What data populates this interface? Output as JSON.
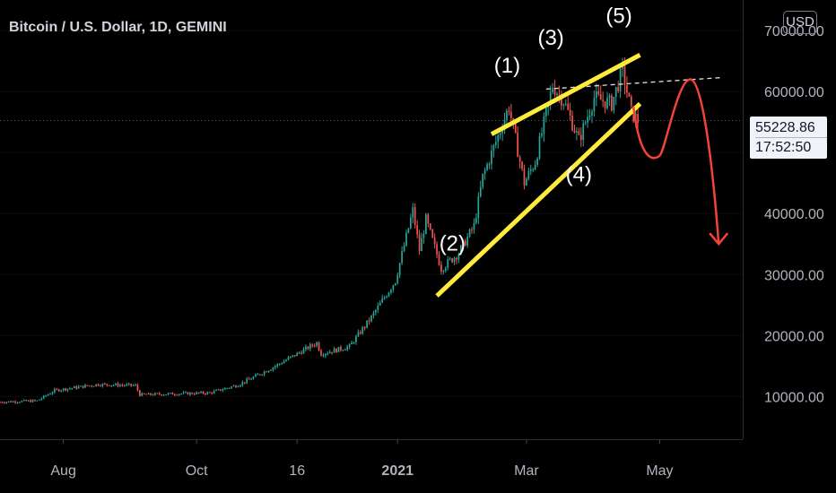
{
  "header": {
    "symbol": "Bitcoin / U.S. Dollar, 1D, GEMINI",
    "currency_button": "USD"
  },
  "price_tag": {
    "price": "55228.86",
    "timer": "17:52:50"
  },
  "colors": {
    "background": "#000000",
    "up_candle": "#26a69a",
    "down_candle": "#ef5350",
    "trendline": "#ffeb3b",
    "projection": "#f44336",
    "axis_text": "#b2b5be"
  },
  "wave_labels": [
    "(1)",
    "(2)",
    "(3)",
    "(4)",
    "(5)"
  ],
  "chart_data": {
    "type": "candlestick",
    "title": "Bitcoin / U.S. Dollar, 1D, GEMINI",
    "y_axis": {
      "ticks": [
        10000,
        20000,
        30000,
        40000,
        50000,
        60000,
        70000
      ],
      "tick_labels": [
        "10000.00",
        "20000.00",
        "30000.00",
        "40000.00",
        "50000.00",
        "60000.00",
        "70000.00"
      ],
      "ylim": [
        3000,
        75000
      ],
      "side": "right"
    },
    "x_axis": {
      "ticks": [
        "Aug",
        "Oct",
        "16",
        "2021",
        "Mar",
        "May"
      ],
      "range": [
        "2020-07-03",
        "2021-06-08"
      ]
    },
    "last_price": 55228.86,
    "price_path": [
      [
        "2020-07-03",
        9100
      ],
      [
        "2020-07-20",
        9300
      ],
      [
        "2020-07-28",
        11000
      ],
      [
        "2020-08-17",
        12000
      ],
      [
        "2020-09-03",
        11800
      ],
      [
        "2020-09-05",
        10300
      ],
      [
        "2020-10-07",
        10600
      ],
      [
        "2020-10-20",
        11900
      ],
      [
        "2020-11-05",
        14800
      ],
      [
        "2020-11-25",
        18800
      ],
      [
        "2020-11-27",
        17000
      ],
      [
        "2020-12-10",
        18200
      ],
      [
        "2020-12-20",
        23000
      ],
      [
        "2020-12-31",
        29000
      ],
      [
        "2021-01-08",
        40500
      ],
      [
        "2021-01-11",
        34000
      ],
      [
        "2021-01-14",
        39000
      ],
      [
        "2021-01-21",
        31000
      ],
      [
        "2021-01-29",
        33500
      ],
      [
        "2021-02-05",
        38000
      ],
      [
        "2021-02-09",
        46000
      ],
      [
        "2021-02-21",
        57500
      ],
      [
        "2021-02-28",
        45000
      ],
      [
        "2021-03-05",
        48500
      ],
      [
        "2021-03-13",
        61000
      ],
      [
        "2021-03-18",
        58500
      ],
      [
        "2021-03-25",
        52000
      ],
      [
        "2021-04-01",
        59000
      ],
      [
        "2021-04-09",
        58000
      ],
      [
        "2021-04-14",
        63500
      ],
      [
        "2021-04-18",
        56500
      ],
      [
        "2021-04-21",
        55228.86
      ]
    ],
    "annotations": {
      "resistance_line": {
        "from": [
          "2021-02-13",
          53000
        ],
        "to": [
          "2021-04-22",
          66000
        ]
      },
      "support_line": {
        "from": [
          "2021-01-19",
          26500
        ],
        "to": [
          "2021-04-22",
          58000
        ]
      },
      "breakout_level": {
        "from": [
          "2021-03-10",
          60400
        ],
        "to": [
          "2021-05-30",
          62300
        ]
      },
      "projection_path": [
        [
          "2021-04-19",
          57500
        ],
        [
          "2021-05-01",
          49500
        ],
        [
          "2021-05-15",
          62000
        ],
        [
          "2021-05-28",
          35000
        ]
      ],
      "wave_points": [
        {
          "label": "(1)",
          "date": "2021-02-21",
          "price": 57500
        },
        {
          "label": "(2)",
          "date": "2021-01-22",
          "price": 31000
        },
        {
          "label": "(3)",
          "date": "2021-03-13",
          "price": 61500
        },
        {
          "label": "(4)",
          "date": "2021-03-25",
          "price": 52000
        },
        {
          "label": "(5)",
          "date": "2021-04-14",
          "price": 64500
        }
      ]
    }
  }
}
